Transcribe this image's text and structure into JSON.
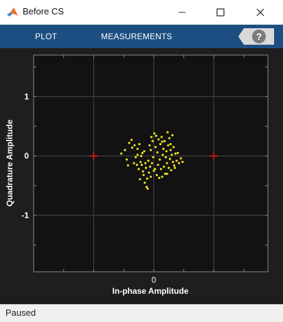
{
  "window": {
    "title": "Before CS",
    "logo_icon": "matlab-logo-icon",
    "minimize_icon": "minimize-icon",
    "maximize_icon": "maximize-icon",
    "close_icon": "close-icon"
  },
  "toolstrip": {
    "tabs": [
      {
        "label": "PLOT"
      },
      {
        "label": "MEASUREMENTS"
      }
    ],
    "help_label": "?",
    "background": "#1c4e82"
  },
  "chart_data": {
    "type": "scatter",
    "title": "",
    "xlabel": "In-phase Amplitude",
    "ylabel": "Quadrature Amplitude",
    "xlim": [
      -2,
      1.9
    ],
    "ylim": [
      -1.95,
      1.7
    ],
    "xticks": [
      0
    ],
    "yticks": [
      1,
      0,
      -1
    ],
    "xtick_labels": [
      "0"
    ],
    "ytick_labels": [
      "1",
      "0",
      "-1"
    ],
    "grid": true,
    "background": "#121212",
    "point_color": "#f0e31a",
    "reference_color": "#e02020",
    "reference_points": [
      {
        "x": -1,
        "y": 0
      },
      {
        "x": 1,
        "y": 0
      }
    ],
    "series": [
      {
        "values": [
          {
            "x": -0.54,
            "y": 0.04
          },
          {
            "x": -0.48,
            "y": 0.1
          },
          {
            "x": -0.45,
            "y": -0.06
          },
          {
            "x": -0.43,
            "y": -0.16
          },
          {
            "x": -0.41,
            "y": 0.22
          },
          {
            "x": -0.37,
            "y": 0.27
          },
          {
            "x": -0.36,
            "y": 0.14
          },
          {
            "x": -0.33,
            "y": -0.12
          },
          {
            "x": -0.32,
            "y": 0.18
          },
          {
            "x": -0.3,
            "y": -0.02
          },
          {
            "x": -0.28,
            "y": -0.15
          },
          {
            "x": -0.27,
            "y": 0.12
          },
          {
            "x": -0.25,
            "y": -0.22
          },
          {
            "x": -0.24,
            "y": 0.2
          },
          {
            "x": -0.23,
            "y": -0.39
          },
          {
            "x": -0.22,
            "y": -0.1
          },
          {
            "x": -0.2,
            "y": -0.15
          },
          {
            "x": -0.19,
            "y": 0.05
          },
          {
            "x": -0.18,
            "y": -0.26
          },
          {
            "x": -0.17,
            "y": -0.32
          },
          {
            "x": -0.15,
            "y": -0.45
          },
          {
            "x": -0.14,
            "y": -0.12
          },
          {
            "x": -0.13,
            "y": -0.2
          },
          {
            "x": -0.12,
            "y": -0.52
          },
          {
            "x": -0.11,
            "y": -0.38
          },
          {
            "x": -0.1,
            "y": -0.55
          },
          {
            "x": -0.09,
            "y": -0.08
          },
          {
            "x": -0.08,
            "y": -0.28
          },
          {
            "x": -0.07,
            "y": 0.18
          },
          {
            "x": -0.05,
            "y": -0.35
          },
          {
            "x": -0.04,
            "y": 0.32
          },
          {
            "x": -0.03,
            "y": -0.12
          },
          {
            "x": -0.02,
            "y": 0.25
          },
          {
            "x": -0.01,
            "y": -0.02
          },
          {
            "x": 0.01,
            "y": 0.38
          },
          {
            "x": 0.02,
            "y": -0.22
          },
          {
            "x": 0.03,
            "y": 0.15
          },
          {
            "x": 0.04,
            "y": 0.34
          },
          {
            "x": 0.05,
            "y": -0.32
          },
          {
            "x": 0.06,
            "y": 0.06
          },
          {
            "x": 0.07,
            "y": -0.15
          },
          {
            "x": 0.08,
            "y": 0.28
          },
          {
            "x": 0.09,
            "y": -0.37
          },
          {
            "x": 0.1,
            "y": -0.06
          },
          {
            "x": 0.11,
            "y": 0.2
          },
          {
            "x": 0.12,
            "y": -0.22
          },
          {
            "x": 0.13,
            "y": 0.32
          },
          {
            "x": 0.14,
            "y": -0.35
          },
          {
            "x": 0.15,
            "y": 0.02
          },
          {
            "x": 0.16,
            "y": 0.12
          },
          {
            "x": 0.17,
            "y": -0.18
          },
          {
            "x": 0.18,
            "y": 0.25
          },
          {
            "x": 0.19,
            "y": -0.3
          },
          {
            "x": 0.2,
            "y": -0.02
          },
          {
            "x": 0.21,
            "y": 0.08
          },
          {
            "x": 0.22,
            "y": -0.12
          },
          {
            "x": 0.23,
            "y": 0.4
          },
          {
            "x": 0.24,
            "y": 0.18
          },
          {
            "x": 0.25,
            "y": -0.2
          },
          {
            "x": 0.26,
            "y": 0.3
          },
          {
            "x": 0.27,
            "y": -0.05
          },
          {
            "x": 0.28,
            "y": 0.1
          },
          {
            "x": 0.29,
            "y": -0.24
          },
          {
            "x": 0.3,
            "y": 0.02
          },
          {
            "x": 0.31,
            "y": 0.35
          },
          {
            "x": 0.32,
            "y": -0.1
          },
          {
            "x": 0.33,
            "y": 0.15
          },
          {
            "x": 0.34,
            "y": -0.16
          },
          {
            "x": 0.36,
            "y": 0.04
          },
          {
            "x": 0.38,
            "y": -0.08
          },
          {
            "x": 0.4,
            "y": 0.05
          },
          {
            "x": 0.42,
            "y": -0.12
          },
          {
            "x": 0.45,
            "y": -0.04
          },
          {
            "x": 0.48,
            "y": -0.1
          },
          {
            "x": -0.27,
            "y": 0.02
          },
          {
            "x": -0.21,
            "y": 0.0
          },
          {
            "x": -0.16,
            "y": 0.08
          },
          {
            "x": -0.06,
            "y": -0.18
          },
          {
            "x": 0.0,
            "y": -0.25
          },
          {
            "x": 0.35,
            "y": -0.2
          },
          {
            "x": 0.14,
            "y": 0.24
          },
          {
            "x": -0.05,
            "y": 0.1
          },
          {
            "x": 0.22,
            "y": -0.3
          },
          {
            "x": 0.28,
            "y": 0.2
          }
        ]
      }
    ]
  },
  "status": {
    "text": "Paused"
  }
}
